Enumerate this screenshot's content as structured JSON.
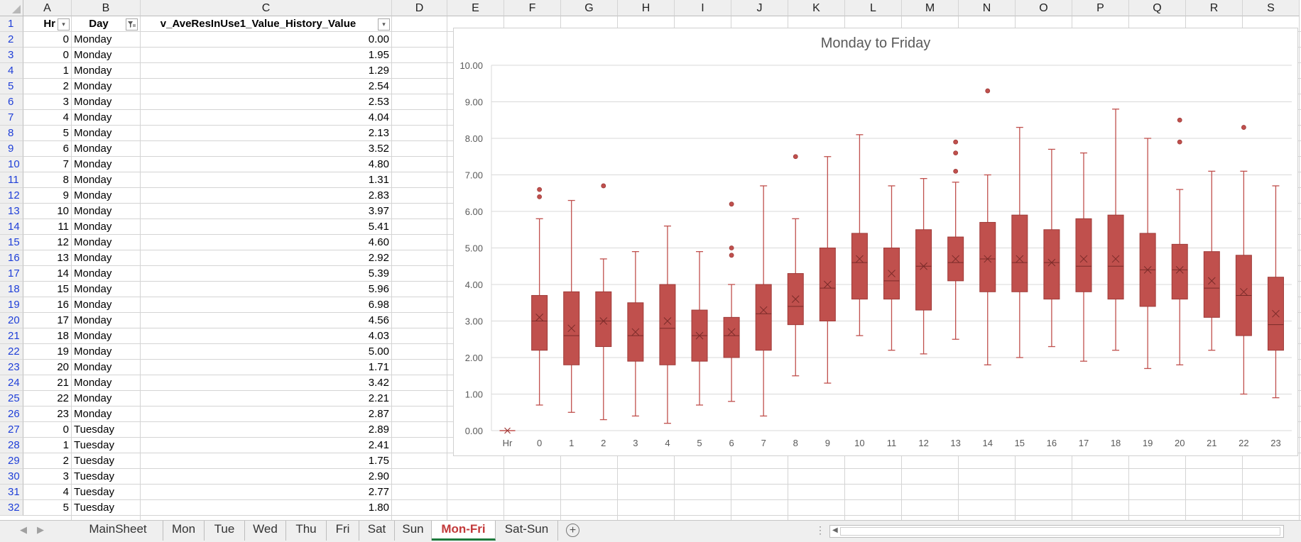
{
  "columns": [
    "A",
    "B",
    "C",
    "D",
    "E",
    "F",
    "G",
    "H",
    "I",
    "J",
    "K",
    "L",
    "M",
    "N",
    "O",
    "P",
    "Q",
    "R",
    "S"
  ],
  "header_row": {
    "hr": "Hr",
    "day": "Day",
    "value": "v_AveResInUse1_Value_History_Value"
  },
  "row_numbers": [
    "1",
    "2",
    "3",
    "4",
    "5",
    "6",
    "7",
    "8",
    "9",
    "10",
    "11",
    "12",
    "13",
    "14",
    "15",
    "16",
    "17",
    "18",
    "19",
    "20",
    "21",
    "22",
    "23",
    "24",
    "25",
    "26",
    "27",
    "28",
    "29",
    "30",
    "31",
    "32"
  ],
  "rows": [
    {
      "hr": "0",
      "day": "Monday",
      "value": "0.00"
    },
    {
      "hr": "0",
      "day": "Monday",
      "value": "1.95"
    },
    {
      "hr": "1",
      "day": "Monday",
      "value": "1.29"
    },
    {
      "hr": "2",
      "day": "Monday",
      "value": "2.54"
    },
    {
      "hr": "3",
      "day": "Monday",
      "value": "2.53"
    },
    {
      "hr": "4",
      "day": "Monday",
      "value": "4.04"
    },
    {
      "hr": "5",
      "day": "Monday",
      "value": "2.13"
    },
    {
      "hr": "6",
      "day": "Monday",
      "value": "3.52"
    },
    {
      "hr": "7",
      "day": "Monday",
      "value": "4.80"
    },
    {
      "hr": "8",
      "day": "Monday",
      "value": "1.31"
    },
    {
      "hr": "9",
      "day": "Monday",
      "value": "2.83"
    },
    {
      "hr": "10",
      "day": "Monday",
      "value": "3.97"
    },
    {
      "hr": "11",
      "day": "Monday",
      "value": "5.41"
    },
    {
      "hr": "12",
      "day": "Monday",
      "value": "4.60"
    },
    {
      "hr": "13",
      "day": "Monday",
      "value": "2.92"
    },
    {
      "hr": "14",
      "day": "Monday",
      "value": "5.39"
    },
    {
      "hr": "15",
      "day": "Monday",
      "value": "5.96"
    },
    {
      "hr": "16",
      "day": "Monday",
      "value": "6.98"
    },
    {
      "hr": "17",
      "day": "Monday",
      "value": "4.56"
    },
    {
      "hr": "18",
      "day": "Monday",
      "value": "4.03"
    },
    {
      "hr": "19",
      "day": "Monday",
      "value": "5.00"
    },
    {
      "hr": "20",
      "day": "Monday",
      "value": "1.71"
    },
    {
      "hr": "21",
      "day": "Monday",
      "value": "3.42"
    },
    {
      "hr": "22",
      "day": "Monday",
      "value": "2.21"
    },
    {
      "hr": "23",
      "day": "Monday",
      "value": "2.87"
    },
    {
      "hr": "0",
      "day": "Tuesday",
      "value": "2.89"
    },
    {
      "hr": "1",
      "day": "Tuesday",
      "value": "2.41"
    },
    {
      "hr": "2",
      "day": "Tuesday",
      "value": "1.75"
    },
    {
      "hr": "3",
      "day": "Tuesday",
      "value": "2.90"
    },
    {
      "hr": "4",
      "day": "Tuesday",
      "value": "2.77"
    },
    {
      "hr": "5",
      "day": "Tuesday",
      "value": "1.80"
    }
  ],
  "sheet_tabs": [
    "MainSheet",
    "Mon",
    "Tue",
    "Wed",
    "Thu",
    "Fri",
    "Sat",
    "Sun",
    "Mon-Fri",
    "Sat-Sun"
  ],
  "active_tab": "Mon-Fri",
  "icons": {
    "add_sheet": "plus-circle-icon",
    "filter": "filter-icon",
    "dropdown": "dropdown-icon"
  },
  "colors": {
    "box_fill": "#c0504d",
    "box_stroke": "#9e3a38",
    "active_tab": "#1d7a3c"
  },
  "chart_data": {
    "type": "box",
    "title": "Monday to Friday",
    "categories": [
      "Hr",
      "0",
      "1",
      "2",
      "3",
      "4",
      "5",
      "6",
      "7",
      "8",
      "9",
      "10",
      "11",
      "12",
      "13",
      "14",
      "15",
      "16",
      "17",
      "18",
      "19",
      "20",
      "21",
      "22",
      "23"
    ],
    "ylim": [
      0,
      10
    ],
    "yticks": [
      "0.00",
      "1.00",
      "2.00",
      "3.00",
      "4.00",
      "5.00",
      "6.00",
      "7.00",
      "8.00",
      "9.00",
      "10.00"
    ],
    "grid": true,
    "boxes": [
      {
        "cat": "Hr",
        "min": 0,
        "q1": 0,
        "median": 0,
        "q3": 0,
        "max": 0,
        "mean": 0,
        "outliers": []
      },
      {
        "cat": "0",
        "min": 0.7,
        "q1": 2.2,
        "median": 3.0,
        "q3": 3.7,
        "max": 5.8,
        "mean": 3.1,
        "outliers": [
          6.4,
          6.6
        ]
      },
      {
        "cat": "1",
        "min": 0.5,
        "q1": 1.8,
        "median": 2.6,
        "q3": 3.8,
        "max": 6.3,
        "mean": 2.8,
        "outliers": []
      },
      {
        "cat": "2",
        "min": 0.3,
        "q1": 2.3,
        "median": 3.0,
        "q3": 3.8,
        "max": 4.7,
        "mean": 3.0,
        "outliers": [
          6.7
        ]
      },
      {
        "cat": "3",
        "min": 0.4,
        "q1": 1.9,
        "median": 2.6,
        "q3": 3.5,
        "max": 4.9,
        "mean": 2.7,
        "outliers": []
      },
      {
        "cat": "4",
        "min": 0.2,
        "q1": 1.8,
        "median": 2.8,
        "q3": 4.0,
        "max": 5.6,
        "mean": 3.0,
        "outliers": []
      },
      {
        "cat": "5",
        "min": 0.7,
        "q1": 1.9,
        "median": 2.6,
        "q3": 3.3,
        "max": 4.9,
        "mean": 2.6,
        "outliers": []
      },
      {
        "cat": "6",
        "min": 0.8,
        "q1": 2.0,
        "median": 2.6,
        "q3": 3.1,
        "max": 4.0,
        "mean": 2.7,
        "outliers": [
          4.8,
          5.0,
          6.2
        ]
      },
      {
        "cat": "7",
        "min": 0.4,
        "q1": 2.2,
        "median": 3.2,
        "q3": 4.0,
        "max": 6.7,
        "mean": 3.3,
        "outliers": []
      },
      {
        "cat": "8",
        "min": 1.5,
        "q1": 2.9,
        "median": 3.4,
        "q3": 4.3,
        "max": 5.8,
        "mean": 3.6,
        "outliers": [
          7.5
        ]
      },
      {
        "cat": "9",
        "min": 1.3,
        "q1": 3.0,
        "median": 3.9,
        "q3": 5.0,
        "max": 7.5,
        "mean": 4.0,
        "outliers": []
      },
      {
        "cat": "10",
        "min": 2.6,
        "q1": 3.6,
        "median": 4.6,
        "q3": 5.4,
        "max": 8.1,
        "mean": 4.7,
        "outliers": []
      },
      {
        "cat": "11",
        "min": 2.2,
        "q1": 3.6,
        "median": 4.1,
        "q3": 5.0,
        "max": 6.7,
        "mean": 4.3,
        "outliers": []
      },
      {
        "cat": "12",
        "min": 2.1,
        "q1": 3.3,
        "median": 4.5,
        "q3": 5.5,
        "max": 6.9,
        "mean": 4.5,
        "outliers": []
      },
      {
        "cat": "13",
        "min": 2.5,
        "q1": 4.1,
        "median": 4.6,
        "q3": 5.3,
        "max": 6.8,
        "mean": 4.7,
        "outliers": [
          7.1,
          7.6,
          7.9
        ]
      },
      {
        "cat": "14",
        "min": 1.8,
        "q1": 3.8,
        "median": 4.7,
        "q3": 5.7,
        "max": 7.0,
        "mean": 4.7,
        "outliers": [
          9.3
        ]
      },
      {
        "cat": "15",
        "min": 2.0,
        "q1": 3.8,
        "median": 4.6,
        "q3": 5.9,
        "max": 8.3,
        "mean": 4.7,
        "outliers": []
      },
      {
        "cat": "16",
        "min": 2.3,
        "q1": 3.6,
        "median": 4.6,
        "q3": 5.5,
        "max": 7.7,
        "mean": 4.6,
        "outliers": []
      },
      {
        "cat": "17",
        "min": 1.9,
        "q1": 3.8,
        "median": 4.5,
        "q3": 5.8,
        "max": 7.6,
        "mean": 4.7,
        "outliers": []
      },
      {
        "cat": "18",
        "min": 2.2,
        "q1": 3.6,
        "median": 4.5,
        "q3": 5.9,
        "max": 8.8,
        "mean": 4.7,
        "outliers": []
      },
      {
        "cat": "19",
        "min": 1.7,
        "q1": 3.4,
        "median": 4.4,
        "q3": 5.4,
        "max": 8.0,
        "mean": 4.4,
        "outliers": []
      },
      {
        "cat": "20",
        "min": 1.8,
        "q1": 3.6,
        "median": 4.4,
        "q3": 5.1,
        "max": 6.6,
        "mean": 4.4,
        "outliers": [
          7.9,
          8.5
        ]
      },
      {
        "cat": "21",
        "min": 2.2,
        "q1": 3.1,
        "median": 3.9,
        "q3": 4.9,
        "max": 7.1,
        "mean": 4.1,
        "outliers": []
      },
      {
        "cat": "22",
        "min": 1.0,
        "q1": 2.6,
        "median": 3.7,
        "q3": 4.8,
        "max": 7.1,
        "mean": 3.8,
        "outliers": [
          8.3
        ]
      },
      {
        "cat": "23",
        "min": 0.9,
        "q1": 2.2,
        "median": 2.9,
        "q3": 4.2,
        "max": 6.7,
        "mean": 3.2,
        "outliers": []
      }
    ]
  }
}
